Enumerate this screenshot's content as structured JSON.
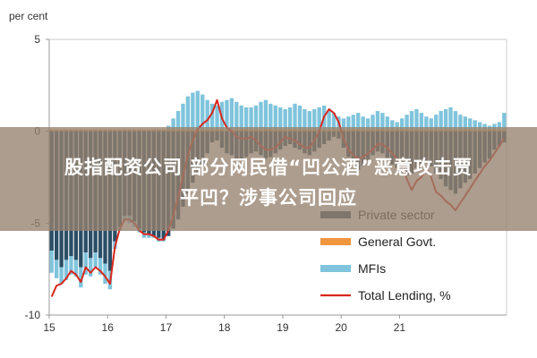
{
  "banner": {
    "line1": "股指配资公司 部分网民借“凹公酒”恶意攻击贾",
    "line2": "平凹？涉事公司回应"
  },
  "chart_data": {
    "type": "bar",
    "ylabel": "per cent",
    "ylim": [
      -10,
      5
    ],
    "y_ticks": [
      "5",
      "0",
      "-5",
      "-10"
    ],
    "x_ticks": [
      "15",
      "16",
      "17",
      "18",
      "19",
      "20",
      "21"
    ],
    "legend_placement": "bottom-right",
    "colors": {
      "private": "#2a4e66",
      "general": "#f0963e",
      "mfi": "#7fc4dc",
      "total": "#d9261c"
    },
    "series": [
      {
        "name": "Private sector",
        "type": "bar",
        "values": [
          -6.5,
          -7.0,
          -7.4,
          -7.0,
          -6.8,
          -7.0,
          -7.4,
          -6.6,
          -6.9,
          -6.6,
          -6.9,
          -7.2,
          -7.6,
          -6.0,
          -5.2,
          -4.6,
          -4.6,
          -4.9,
          -5.3,
          -5.5,
          -5.6,
          -5.7,
          -5.8,
          -5.9,
          -5.7,
          -5.3,
          -4.8,
          -4.1,
          -3.4,
          -2.8,
          -2.3,
          -1.8,
          -1.2,
          -0.6,
          -0.5,
          -0.9,
          -1.2,
          -1.3,
          -1.5,
          -1.6,
          -1.4,
          -1.2,
          -1.1,
          -1.3,
          -1.5,
          -1.4,
          -1.2,
          -1.0,
          -0.8,
          -0.7,
          -0.9,
          -1.0,
          -1.2,
          -1.3,
          -1.1,
          -0.9,
          -0.7,
          -0.5,
          -0.3,
          -0.4,
          -0.9,
          -1.4,
          -1.8,
          -2.1,
          -1.9,
          -1.6,
          -1.3,
          -1.1,
          -1.2,
          -1.5,
          -1.8,
          -2.0,
          -2.2,
          -2.4,
          -2.3,
          -2.0,
          -1.8,
          -1.6,
          -1.9,
          -2.3,
          -2.6,
          -3.0,
          -3.2,
          -3.4,
          -3.1,
          -2.8,
          -2.6,
          -2.3,
          -2.0,
          -1.7,
          -1.5,
          -1.0,
          -0.8,
          -0.6
        ]
      },
      {
        "name": "General Govt.",
        "type": "bar",
        "values": [
          0.1,
          0.1,
          0.1,
          0.1,
          0.1,
          0.1,
          0.1,
          0.1,
          0.1,
          0.1,
          0.1,
          0.1,
          0.1,
          0.1,
          0.1,
          0.1,
          0.1,
          0.1,
          0.1,
          0.1,
          0.1,
          0.1,
          0.1,
          0.1,
          0.1,
          0.1,
          0.1,
          0.1,
          0.1,
          0.1,
          0.1,
          0.1,
          0.1,
          0.1,
          0.1,
          0.1,
          0.1,
          0.1,
          0.1,
          0.1,
          0.1,
          0.1,
          0.1,
          0.1,
          0.1,
          0.1,
          0.1,
          0.1,
          0.1,
          0.1,
          0.1,
          0.1,
          0.1,
          0.1,
          0.1,
          0.1,
          0.1,
          0.1,
          0.1,
          0.1,
          0.1,
          0.1,
          0.1,
          0.1,
          0.1,
          0.1,
          0.1,
          0.1,
          0.1,
          0.1,
          0.1,
          0.1,
          0.1,
          0.1,
          0.1,
          0.1,
          0.1,
          0.1,
          0.1,
          0.1,
          0.1,
          0.1,
          0.1,
          0.1,
          0.1,
          0.1,
          0.1,
          0.1,
          0.1,
          0.1,
          0.1,
          0.1,
          0.1,
          0.1
        ]
      },
      {
        "name": "MFIs",
        "type": "bar",
        "values": [
          -1.2,
          -1.0,
          -0.9,
          -1.1,
          -1.0,
          -0.9,
          -1.1,
          -1.2,
          -1.0,
          -0.8,
          -0.9,
          -1.1,
          -1.0,
          -0.4,
          -0.2,
          -0.3,
          -0.4,
          -0.3,
          -0.2,
          -0.3,
          -0.2,
          -0.1,
          -0.2,
          -0.1,
          0.2,
          0.6,
          1.0,
          1.4,
          1.8,
          2.0,
          2.1,
          1.9,
          1.6,
          1.4,
          1.3,
          1.5,
          1.6,
          1.7,
          1.5,
          1.3,
          1.2,
          1.2,
          1.3,
          1.5,
          1.6,
          1.4,
          1.3,
          1.2,
          1.1,
          1.2,
          1.4,
          1.3,
          1.1,
          1.0,
          1.1,
          1.2,
          1.3,
          1.0,
          0.9,
          0.7,
          0.6,
          0.7,
          0.8,
          0.9,
          0.7,
          0.6,
          0.8,
          1.0,
          0.9,
          0.7,
          0.5,
          0.4,
          0.6,
          0.8,
          1.0,
          1.1,
          0.9,
          0.7,
          0.6,
          0.8,
          1.0,
          1.1,
          1.2,
          1.0,
          0.8,
          0.7,
          0.6,
          0.5,
          0.4,
          0.3,
          0.2,
          0.3,
          0.4,
          0.9
        ]
      },
      {
        "name": "Total Lending, %",
        "type": "line",
        "values": [
          -9.0,
          -8.4,
          -8.3,
          -8.0,
          -7.6,
          -7.8,
          -8.2,
          -7.4,
          -7.7,
          -7.4,
          -7.6,
          -7.9,
          -8.3,
          -6.3,
          -5.3,
          -4.8,
          -4.8,
          -5.0,
          -5.4,
          -5.6,
          -5.6,
          -5.7,
          -5.9,
          -5.9,
          -5.4,
          -4.6,
          -3.6,
          -2.4,
          -1.3,
          -0.5,
          0.1,
          0.4,
          0.6,
          1.0,
          1.7,
          0.7,
          0.2,
          0.0,
          -0.3,
          -0.4,
          -0.4,
          -0.3,
          -0.5,
          -0.8,
          -1.0,
          -1.0,
          -0.9,
          -0.6,
          -0.3,
          -0.4,
          -0.5,
          -0.7,
          -0.9,
          -0.9,
          -0.5,
          0.0,
          0.8,
          1.2,
          1.0,
          0.5,
          -0.4,
          -1.0,
          -1.3,
          -1.5,
          -1.4,
          -1.2,
          -1.0,
          -0.7,
          -0.7,
          -0.9,
          -1.2,
          -1.5,
          -1.8,
          -2.6,
          -3.2,
          -2.7,
          -2.5,
          -2.0,
          -2.5,
          -3.3,
          -3.5,
          -3.8,
          -4.0,
          -4.3,
          -3.9,
          -3.5,
          -3.1,
          -2.7,
          -2.3,
          -1.9,
          -1.6,
          -1.2,
          -0.8,
          -0.4
        ]
      }
    ]
  }
}
